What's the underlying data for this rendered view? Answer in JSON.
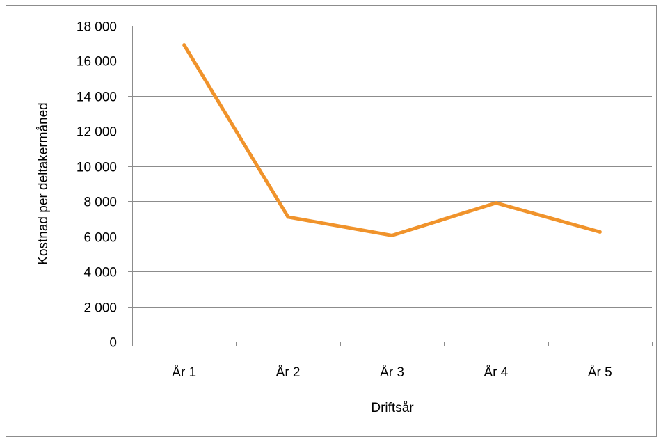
{
  "chart_data": {
    "type": "line",
    "title": "",
    "xlabel": "Driftsår",
    "ylabel": "Kostnad per deltakermåned",
    "categories": [
      "År 1",
      "År 2",
      "År 3",
      "År 4",
      "År 5"
    ],
    "series": [
      {
        "values": [
          16900,
          7100,
          6050,
          7900,
          6250
        ],
        "color": "#f0932b"
      }
    ],
    "ylim": [
      0,
      18000
    ],
    "yticks": [
      0,
      2000,
      4000,
      6000,
      8000,
      10000,
      12000,
      14000,
      16000,
      18000
    ],
    "ytick_labels": [
      "0",
      "2 000",
      "4 000",
      "6 000",
      "8 000",
      "10 000",
      "12 000",
      "14 000",
      "16 000",
      "18 000"
    ],
    "grid": true,
    "legend": "none",
    "colors": {
      "grid": "#8c8c8c",
      "axis": "#8c8c8c",
      "frame": "#8c8c8c"
    }
  }
}
